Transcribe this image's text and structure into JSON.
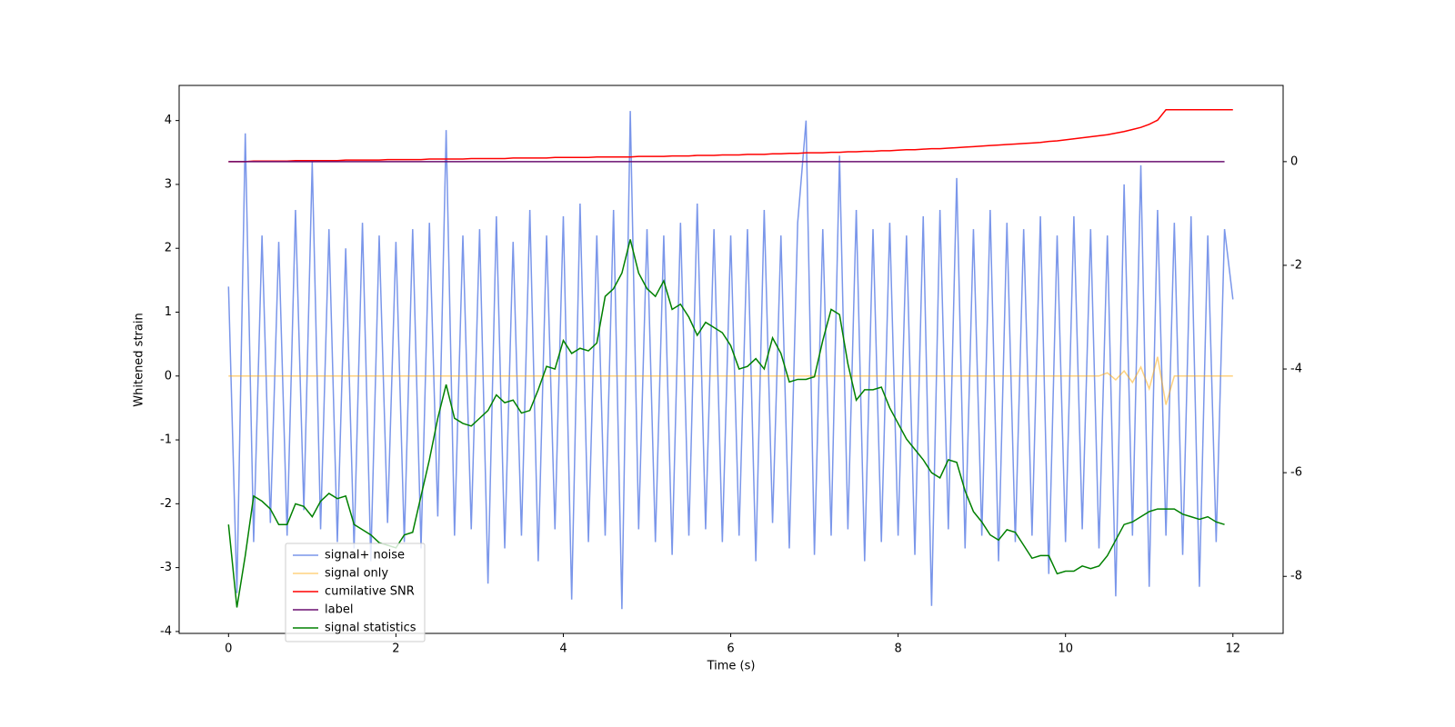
{
  "chart_data": {
    "type": "line",
    "xlabel": "Time (s)",
    "ylabel": "Whitened strain",
    "x": [
      0,
      0.1,
      0.2,
      0.3,
      0.4,
      0.5,
      0.6,
      0.7,
      0.8,
      0.9,
      1,
      1.1,
      1.2,
      1.3,
      1.4,
      1.5,
      1.6,
      1.7,
      1.8,
      1.9,
      2,
      2.1,
      2.2,
      2.3,
      2.4,
      2.5,
      2.6,
      2.7,
      2.8,
      2.9,
      3,
      3.1,
      3.2,
      3.3,
      3.4,
      3.5,
      3.6,
      3.7,
      3.8,
      3.9,
      4,
      4.1,
      4.2,
      4.3,
      4.4,
      4.5,
      4.6,
      4.7,
      4.8,
      4.9,
      5,
      5.1,
      5.2,
      5.3,
      5.4,
      5.5,
      5.6,
      5.7,
      5.8,
      5.9,
      6,
      6.1,
      6.2,
      6.3,
      6.4,
      6.5,
      6.6,
      6.7,
      6.8,
      6.9,
      7,
      7.1,
      7.2,
      7.3,
      7.4,
      7.5,
      7.6,
      7.7,
      7.8,
      7.9,
      8,
      8.1,
      8.2,
      8.3,
      8.4,
      8.5,
      8.6,
      8.7,
      8.8,
      8.9,
      9,
      9.1,
      9.2,
      9.3,
      9.4,
      9.5,
      9.6,
      9.7,
      9.8,
      9.9,
      10,
      10.1,
      10.2,
      10.3,
      10.4,
      10.5,
      10.6,
      10.7,
      10.8,
      10.9,
      11,
      11.1,
      11.2,
      11.3,
      11.4,
      11.5,
      11.6,
      11.7,
      11.8,
      11.9,
      12
    ],
    "series": [
      {
        "name": "signal+ noise",
        "color": "#4169e1",
        "alpha": 0.7,
        "axis": "y",
        "values": [
          1.4,
          -3.4,
          3.8,
          -2.6,
          2.2,
          -2.3,
          2.1,
          -2.5,
          2.6,
          -2.1,
          3.35,
          -2.4,
          2.3,
          -2.6,
          2.0,
          -2.7,
          2.4,
          -2.9,
          2.2,
          -2.3,
          2.1,
          -2.6,
          2.3,
          -2.7,
          2.4,
          -2.2,
          3.85,
          -2.5,
          2.2,
          -2.4,
          2.3,
          -3.25,
          2.5,
          -2.7,
          2.1,
          -2.5,
          2.6,
          -2.9,
          2.2,
          -2.4,
          2.5,
          -3.5,
          2.7,
          -2.6,
          2.2,
          -2.5,
          2.6,
          -3.65,
          4.15,
          -2.4,
          2.3,
          -2.6,
          2.2,
          -2.8,
          2.4,
          -2.5,
          2.7,
          -2.4,
          2.3,
          -2.6,
          2.2,
          -2.5,
          2.3,
          -2.9,
          2.6,
          -2.3,
          2.2,
          -2.7,
          2.4,
          4.0,
          -2.8,
          2.3,
          -2.5,
          3.45,
          -2.4,
          2.6,
          -2.9,
          2.3,
          -2.6,
          2.4,
          -2.5,
          2.2,
          -2.8,
          2.5,
          -3.6,
          2.6,
          -2.4,
          3.1,
          -2.7,
          2.3,
          -2.5,
          2.6,
          -2.9,
          2.4,
          -2.6,
          2.3,
          -2.5,
          2.5,
          -3.1,
          2.2,
          -2.6,
          2.5,
          -2.4,
          2.3,
          -2.7,
          2.2,
          -3.45,
          3.0,
          -2.5,
          3.3,
          -3.3,
          2.6,
          -2.5,
          2.4,
          -2.8,
          2.5,
          -3.3,
          2.2,
          -2.6,
          2.3,
          1.2
        ]
      },
      {
        "name": "signal only",
        "color": "#ffa500",
        "alpha": 0.5,
        "axis": "y",
        "values": [
          0,
          0,
          0,
          0,
          0,
          0,
          0,
          0,
          0,
          0,
          0,
          0,
          0,
          0,
          0,
          0,
          0,
          0,
          0,
          0,
          0,
          0,
          0,
          0,
          0,
          0,
          0,
          0,
          0,
          0,
          0,
          0,
          0,
          0,
          0,
          0,
          0,
          0,
          0,
          0,
          0,
          0,
          0,
          0,
          0,
          0,
          0,
          0,
          0,
          0,
          0,
          0,
          0,
          0,
          0,
          0,
          0,
          0,
          0,
          0,
          0,
          0,
          0,
          0,
          0,
          0,
          0,
          0,
          0,
          0,
          0,
          0,
          0,
          0,
          0,
          0,
          0,
          0,
          0,
          0,
          0,
          0,
          0,
          0,
          0,
          0,
          0,
          0,
          0,
          0,
          0,
          0,
          0,
          0,
          0,
          0,
          0,
          0,
          0,
          0,
          0,
          0,
          0,
          0,
          0,
          0.05,
          -0.06,
          0.08,
          -0.1,
          0.14,
          -0.2,
          0.3,
          -0.45,
          0,
          0,
          0,
          0,
          0,
          0,
          0,
          0
        ]
      },
      {
        "name": "cumilative SNR",
        "color": "#ff0000",
        "alpha": 1,
        "axis": "y2",
        "values": [
          0,
          0,
          0,
          0.01,
          0.01,
          0.01,
          0.01,
          0.01,
          0.02,
          0.02,
          0.02,
          0.02,
          0.02,
          0.02,
          0.03,
          0.03,
          0.03,
          0.03,
          0.03,
          0.04,
          0.04,
          0.04,
          0.04,
          0.04,
          0.05,
          0.05,
          0.05,
          0.05,
          0.05,
          0.06,
          0.06,
          0.06,
          0.06,
          0.06,
          0.07,
          0.07,
          0.07,
          0.07,
          0.07,
          0.08,
          0.08,
          0.08,
          0.08,
          0.08,
          0.09,
          0.09,
          0.09,
          0.09,
          0.09,
          0.1,
          0.1,
          0.1,
          0.1,
          0.11,
          0.11,
          0.11,
          0.12,
          0.12,
          0.12,
          0.13,
          0.13,
          0.13,
          0.14,
          0.14,
          0.14,
          0.15,
          0.15,
          0.16,
          0.16,
          0.17,
          0.17,
          0.17,
          0.18,
          0.18,
          0.19,
          0.19,
          0.2,
          0.2,
          0.21,
          0.21,
          0.22,
          0.23,
          0.23,
          0.24,
          0.25,
          0.25,
          0.26,
          0.27,
          0.28,
          0.29,
          0.3,
          0.31,
          0.32,
          0.33,
          0.34,
          0.35,
          0.36,
          0.37,
          0.39,
          0.4,
          0.42,
          0.44,
          0.46,
          0.48,
          0.5,
          0.52,
          0.55,
          0.58,
          0.62,
          0.66,
          0.72,
          0.8,
          1.0,
          1.0,
          1.0,
          1.0,
          1.0,
          1.0,
          1.0,
          1.0,
          1.0
        ]
      },
      {
        "name": "label",
        "color": "#6a0f70",
        "alpha": 1,
        "axis": "y2",
        "values": [
          0,
          0,
          0,
          0,
          0,
          0,
          0,
          0,
          0,
          0,
          0,
          0,
          0,
          0,
          0,
          0,
          0,
          0,
          0,
          0,
          0,
          0,
          0,
          0,
          0,
          0,
          0,
          0,
          0,
          0,
          0,
          0,
          0,
          0,
          0,
          0,
          0,
          0,
          0,
          0,
          0,
          0,
          0,
          0,
          0,
          0,
          0,
          0,
          0,
          0,
          0,
          0,
          0,
          0,
          0,
          0,
          0,
          0,
          0,
          0,
          0,
          0,
          0,
          0,
          0,
          0,
          0,
          0,
          0,
          0,
          0,
          0,
          0,
          0,
          0,
          0,
          0,
          0,
          0,
          0,
          0,
          0,
          0,
          0,
          0,
          0,
          0,
          0,
          0,
          0,
          0,
          0,
          0,
          0,
          0,
          0,
          0,
          0,
          0,
          0,
          0,
          0,
          0,
          0,
          0,
          0,
          0,
          0,
          0,
          0,
          0,
          0,
          0,
          0,
          0,
          0,
          0,
          0,
          0,
          0,
          null
        ]
      },
      {
        "name": "signal statistics",
        "color": "#008000",
        "alpha": 1,
        "axis": "y2",
        "values": [
          -7.0,
          -8.6,
          -7.6,
          -6.45,
          -6.55,
          -6.7,
          -7.0,
          -7.0,
          -6.6,
          -6.65,
          -6.85,
          -6.55,
          -6.4,
          -6.5,
          -6.45,
          -7.0,
          -7.1,
          -7.2,
          -7.35,
          -7.4,
          -7.45,
          -7.2,
          -7.15,
          -6.45,
          -5.75,
          -4.95,
          -4.3,
          -4.95,
          -5.05,
          -5.1,
          -4.95,
          -4.8,
          -4.5,
          -4.65,
          -4.6,
          -4.85,
          -4.8,
          -4.4,
          -3.95,
          -4.0,
          -3.45,
          -3.7,
          -3.6,
          -3.65,
          -3.5,
          -2.6,
          -2.45,
          -2.15,
          -1.5,
          -2.15,
          -2.45,
          -2.6,
          -2.3,
          -2.85,
          -2.75,
          -3.0,
          -3.35,
          -3.1,
          -3.2,
          -3.3,
          -3.55,
          -4.0,
          -3.95,
          -3.8,
          -4.0,
          -3.4,
          -3.7,
          -4.25,
          -4.2,
          -4.2,
          -4.15,
          -3.45,
          -2.85,
          -2.95,
          -3.9,
          -4.6,
          -4.4,
          -4.4,
          -4.35,
          -4.75,
          -5.05,
          -5.35,
          -5.55,
          -5.75,
          -6.0,
          -6.1,
          -5.75,
          -5.8,
          -6.35,
          -6.75,
          -6.95,
          -7.2,
          -7.3,
          -7.1,
          -7.15,
          -7.4,
          -7.65,
          -7.6,
          -7.6,
          -7.95,
          -7.9,
          -7.9,
          -7.8,
          -7.85,
          -7.8,
          -7.6,
          -7.3,
          -7.0,
          -6.95,
          -6.85,
          -6.75,
          -6.7,
          -6.7,
          -6.7,
          -6.8,
          -6.85,
          -6.9,
          -6.85,
          -6.95,
          -7.0,
          null
        ]
      }
    ],
    "xlim": [
      -0.59,
      12.6
    ],
    "xticks": [
      0,
      2,
      4,
      6,
      8,
      10,
      12
    ],
    "ylim": [
      -4.03,
      4.55
    ],
    "yticks": [
      -4,
      -3,
      -2,
      -1,
      0,
      1,
      2,
      3,
      4
    ],
    "y2lim": [
      -9.1,
      1.47
    ],
    "y2ticks": [
      -8,
      -6,
      -4,
      -2,
      0
    ],
    "grid": false,
    "legend": "lower left"
  }
}
